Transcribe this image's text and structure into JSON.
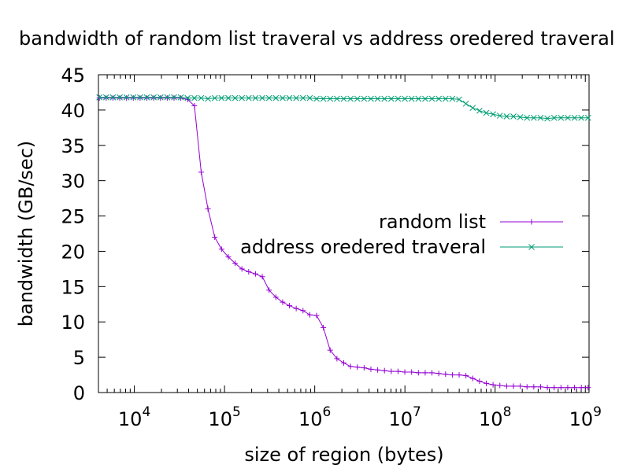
{
  "chart_data": {
    "type": "line",
    "title": "bandwidth of random list traveral vs address oredered traveral",
    "xlabel": "size of region (bytes)",
    "ylabel": "bandwidth (GB/sec)",
    "xscale": "log",
    "xlim": [
      4000,
      1100000000
    ],
    "ylim": [
      0,
      45
    ],
    "grid": false,
    "legend_position": "center-right",
    "x_ticks": [
      {
        "value": 10000,
        "base": "10",
        "exp": "4"
      },
      {
        "value": 100000,
        "base": "10",
        "exp": "5"
      },
      {
        "value": 1000000,
        "base": "10",
        "exp": "6"
      },
      {
        "value": 10000000,
        "base": "10",
        "exp": "7"
      },
      {
        "value": 100000000,
        "base": "10",
        "exp": "8"
      },
      {
        "value": 1000000000,
        "base": "10",
        "exp": "9"
      }
    ],
    "y_ticks": [
      "0",
      "5",
      "10",
      "15",
      "20",
      "25",
      "30",
      "35",
      "40",
      "45"
    ],
    "series": [
      {
        "name": "random list",
        "color": "#9400d3",
        "marker": "plus",
        "points": [
          [
            4096,
            41.7
          ],
          [
            4871,
            41.7
          ],
          [
            5793,
            41.7
          ],
          [
            6889,
            41.7
          ],
          [
            8192,
            41.7
          ],
          [
            9742,
            41.7
          ],
          [
            11585,
            41.7
          ],
          [
            13777,
            41.7
          ],
          [
            16384,
            41.7
          ],
          [
            19484,
            41.7
          ],
          [
            23170,
            41.7
          ],
          [
            27554,
            41.7
          ],
          [
            32768,
            41.7
          ],
          [
            38968,
            41.5
          ],
          [
            46341,
            40.6
          ],
          [
            55109,
            31.2
          ],
          [
            65536,
            26.0
          ],
          [
            77936,
            22.0
          ],
          [
            92682,
            20.3
          ],
          [
            110218,
            19.2
          ],
          [
            131072,
            18.3
          ],
          [
            155872,
            17.5
          ],
          [
            185364,
            17.1
          ],
          [
            220436,
            16.8
          ],
          [
            262144,
            16.4
          ],
          [
            311744,
            14.5
          ],
          [
            370728,
            13.5
          ],
          [
            440872,
            12.8
          ],
          [
            524288,
            12.3
          ],
          [
            623487,
            11.9
          ],
          [
            741455,
            11.6
          ],
          [
            881744,
            11.0
          ],
          [
            1048576,
            10.9
          ],
          [
            1246974,
            9.2
          ],
          [
            1482910,
            6.0
          ],
          [
            1763488,
            4.8
          ],
          [
            2097152,
            4.2
          ],
          [
            2493948,
            3.7
          ],
          [
            2965820,
            3.6
          ],
          [
            3526975,
            3.5
          ],
          [
            4194304,
            3.3
          ],
          [
            4987896,
            3.2
          ],
          [
            5931641,
            3.1
          ],
          [
            7053950,
            3.0
          ],
          [
            8388608,
            3.0
          ],
          [
            9975792,
            2.9
          ],
          [
            11863283,
            2.9
          ],
          [
            14107900,
            2.8
          ],
          [
            16777216,
            2.8
          ],
          [
            19951584,
            2.8
          ],
          [
            23726566,
            2.7
          ],
          [
            28215800,
            2.6
          ],
          [
            33554432,
            2.5
          ],
          [
            39903169,
            2.5
          ],
          [
            47453132,
            2.4
          ],
          [
            56431600,
            2.0
          ],
          [
            67108864,
            1.6
          ],
          [
            79806338,
            1.3
          ],
          [
            94906265,
            1.1
          ],
          [
            112863201,
            1.0
          ],
          [
            134217728,
            0.9
          ],
          [
            159612677,
            0.9
          ],
          [
            189812531,
            0.9
          ],
          [
            225726402,
            0.8
          ],
          [
            268435456,
            0.8
          ],
          [
            319225354,
            0.8
          ],
          [
            379625062,
            0.7
          ],
          [
            451452804,
            0.7
          ],
          [
            536870912,
            0.7
          ],
          [
            638450708,
            0.7
          ],
          [
            759250125,
            0.7
          ],
          [
            902905609,
            0.7
          ],
          [
            1073741824,
            0.7
          ]
        ]
      },
      {
        "name": "address oredered traveral",
        "color": "#009e73",
        "marker": "cross",
        "points": [
          [
            4096,
            41.8
          ],
          [
            4871,
            41.8
          ],
          [
            5793,
            41.8
          ],
          [
            6889,
            41.8
          ],
          [
            8192,
            41.8
          ],
          [
            9742,
            41.8
          ],
          [
            11585,
            41.8
          ],
          [
            13777,
            41.8
          ],
          [
            16384,
            41.8
          ],
          [
            19484,
            41.8
          ],
          [
            23170,
            41.8
          ],
          [
            27554,
            41.8
          ],
          [
            32768,
            41.8
          ],
          [
            38968,
            41.7
          ],
          [
            46341,
            41.7
          ],
          [
            55109,
            41.7
          ],
          [
            65536,
            41.6
          ],
          [
            77936,
            41.7
          ],
          [
            92682,
            41.7
          ],
          [
            110218,
            41.7
          ],
          [
            131072,
            41.7
          ],
          [
            155872,
            41.7
          ],
          [
            185364,
            41.7
          ],
          [
            220436,
            41.7
          ],
          [
            262144,
            41.7
          ],
          [
            311744,
            41.7
          ],
          [
            370728,
            41.7
          ],
          [
            440872,
            41.7
          ],
          [
            524288,
            41.7
          ],
          [
            623487,
            41.7
          ],
          [
            741455,
            41.7
          ],
          [
            881744,
            41.7
          ],
          [
            1048576,
            41.6
          ],
          [
            1246974,
            41.6
          ],
          [
            1482910,
            41.6
          ],
          [
            1763488,
            41.6
          ],
          [
            2097152,
            41.6
          ],
          [
            2493948,
            41.6
          ],
          [
            2965820,
            41.6
          ],
          [
            3526975,
            41.6
          ],
          [
            4194304,
            41.6
          ],
          [
            4987896,
            41.6
          ],
          [
            5931641,
            41.6
          ],
          [
            7053950,
            41.6
          ],
          [
            8388608,
            41.6
          ],
          [
            9975792,
            41.6
          ],
          [
            11863283,
            41.6
          ],
          [
            14107900,
            41.6
          ],
          [
            16777216,
            41.6
          ],
          [
            19951584,
            41.6
          ],
          [
            23726566,
            41.6
          ],
          [
            28215800,
            41.6
          ],
          [
            33554432,
            41.6
          ],
          [
            39903169,
            41.5
          ],
          [
            47453132,
            40.9
          ],
          [
            56431600,
            40.3
          ],
          [
            67108864,
            39.9
          ],
          [
            79806338,
            39.6
          ],
          [
            94906265,
            39.4
          ],
          [
            112863201,
            39.2
          ],
          [
            134217728,
            39.1
          ],
          [
            159612677,
            39.1
          ],
          [
            189812531,
            39.0
          ],
          [
            225726402,
            38.9
          ],
          [
            268435456,
            38.9
          ],
          [
            319225354,
            38.9
          ],
          [
            379625062,
            38.8
          ],
          [
            451452804,
            38.9
          ],
          [
            536870912,
            38.9
          ],
          [
            638450708,
            38.9
          ],
          [
            759250125,
            38.9
          ],
          [
            902905609,
            38.9
          ],
          [
            1073741824,
            38.9
          ]
        ]
      }
    ]
  }
}
